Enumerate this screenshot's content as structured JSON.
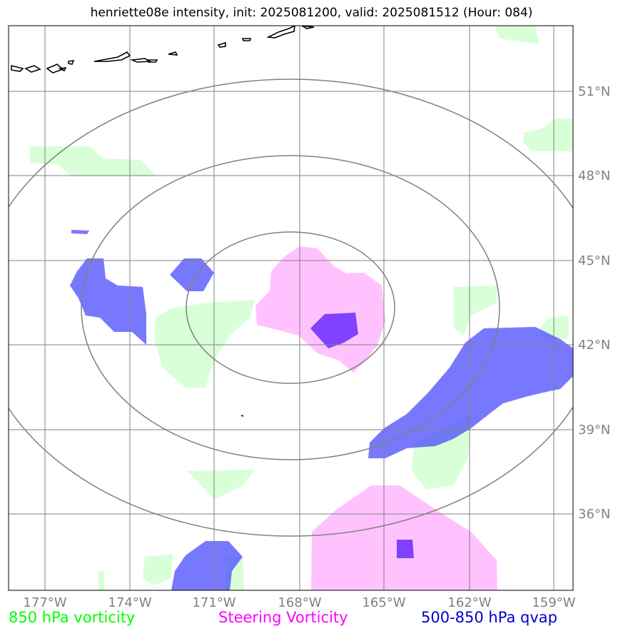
{
  "title": "henriette08e intensity, init: 2025081200, valid: 2025081512 (Hour: 084)",
  "lon_labels": [
    "177°W",
    "174°W",
    "171°W",
    "168°W",
    "165°W",
    "162°W",
    "159°W"
  ],
  "lat_labels": [
    "51°N",
    "48°N",
    "45°N",
    "42°N",
    "39°N",
    "36°N"
  ],
  "legend": {
    "vort850": "850 hPa vorticity",
    "steering": "Steering Vorticity",
    "qvap": "500-850 hPa qvap"
  },
  "colors": {
    "vort850": "#ccffcc",
    "steering": "#ff99ff",
    "qvap": "#4444ff",
    "qvap_core": "#6a2bff",
    "grid": "#808080",
    "coast": "#000000"
  },
  "center": {
    "lon": -168,
    "lat": 43.5
  }
}
